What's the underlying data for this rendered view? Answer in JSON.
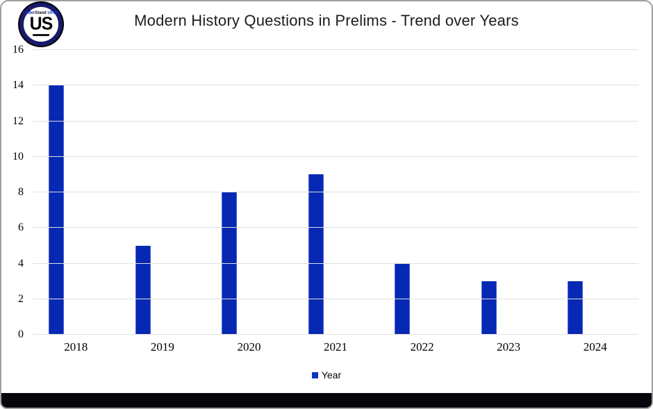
{
  "logo": {
    "top_under": "Under",
    "top_stand": "Stand",
    "top_upsc": " UPSC",
    "monogram": "US"
  },
  "title": "Modern History Questions in Prelims - Trend over Years",
  "legend": {
    "label": "Year"
  },
  "colors": {
    "bar": "#0628b2",
    "bar_edge": "#4a63d8",
    "grid": "#e0e0e0",
    "legend_marker": "#0a34c6",
    "footer": "#06060c",
    "logo_ring": "#181a6b"
  },
  "chart_data": {
    "type": "bar",
    "title": "Modern History Questions in Prelims - Trend over Years",
    "categories": [
      "2018",
      "2019",
      "2020",
      "2021",
      "2022",
      "2023",
      "2024"
    ],
    "series": [
      {
        "name": "Year",
        "values": [
          14,
          5,
          8,
          9,
          4,
          3,
          3
        ]
      }
    ],
    "xlabel": "",
    "ylabel": "",
    "ylim": [
      0,
      16
    ],
    "yticks": [
      0,
      2,
      4,
      6,
      8,
      10,
      12,
      14,
      16
    ],
    "grid": true,
    "legend_position": "bottom"
  }
}
